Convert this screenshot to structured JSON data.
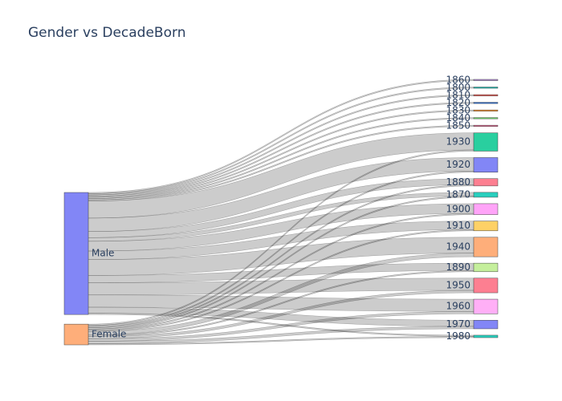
{
  "chart_data": {
    "type": "sankey",
    "title": "Gender vs DecadeBorn",
    "sources": [
      {
        "label": "Male",
        "color": "#8286f6"
      },
      {
        "label": "Female",
        "color": "#feae7a"
      }
    ],
    "targets": [
      {
        "label": "1860",
        "color": "#b088d8"
      },
      {
        "label": "1800",
        "color": "#17bcb3"
      },
      {
        "label": "1810",
        "color": "#e8483f"
      },
      {
        "label": "1820",
        "color": "#2a70d8"
      },
      {
        "label": "1830",
        "color": "#ff8a1e"
      },
      {
        "label": "1840",
        "color": "#6cd66a"
      },
      {
        "label": "1850",
        "color": "#e05e8a"
      },
      {
        "label": "1930",
        "color": "#29cf9f"
      },
      {
        "label": "1920",
        "color": "#8286f6"
      },
      {
        "label": "1880",
        "color": "#fd7f91"
      },
      {
        "label": "1870",
        "color": "#29cfbe"
      },
      {
        "label": "1900",
        "color": "#ffa4f8"
      },
      {
        "label": "1910",
        "color": "#fed166"
      },
      {
        "label": "1940",
        "color": "#feae7a"
      },
      {
        "label": "1890",
        "color": "#c5ef9c"
      },
      {
        "label": "1950",
        "color": "#fd7f91"
      },
      {
        "label": "1960",
        "color": "#ffaff6"
      },
      {
        "label": "1970",
        "color": "#8286f6"
      },
      {
        "label": "1980",
        "color": "#29cfbe"
      }
    ],
    "links": [
      {
        "source": "Male",
        "target": "1860",
        "value": 1
      },
      {
        "source": "Male",
        "target": "1800",
        "value": 1
      },
      {
        "source": "Male",
        "target": "1810",
        "value": 1
      },
      {
        "source": "Male",
        "target": "1820",
        "value": 1
      },
      {
        "source": "Male",
        "target": "1830",
        "value": 1
      },
      {
        "source": "Male",
        "target": "1840",
        "value": 1
      },
      {
        "source": "Male",
        "target": "1850",
        "value": 1
      },
      {
        "source": "Male",
        "target": "1930",
        "value": 14
      },
      {
        "source": "Male",
        "target": "1920",
        "value": 11
      },
      {
        "source": "Male",
        "target": "1880",
        "value": 5
      },
      {
        "source": "Male",
        "target": "1870",
        "value": 3
      },
      {
        "source": "Male",
        "target": "1900",
        "value": 8
      },
      {
        "source": "Male",
        "target": "1910",
        "value": 7
      },
      {
        "source": "Male",
        "target": "1940",
        "value": 13
      },
      {
        "source": "Male",
        "target": "1890",
        "value": 6
      },
      {
        "source": "Male",
        "target": "1950",
        "value": 10
      },
      {
        "source": "Male",
        "target": "1960",
        "value": 10
      },
      {
        "source": "Male",
        "target": "1970",
        "value": 5
      },
      {
        "source": "Male",
        "target": "1980",
        "value": 1
      },
      {
        "source": "Female",
        "target": "1930",
        "value": 1
      },
      {
        "source": "Female",
        "target": "1920",
        "value": 1
      },
      {
        "source": "Female",
        "target": "1880",
        "value": 1
      },
      {
        "source": "Female",
        "target": "1870",
        "value": 1
      },
      {
        "source": "Female",
        "target": "1900",
        "value": 1
      },
      {
        "source": "Female",
        "target": "1910",
        "value": 1
      },
      {
        "source": "Female",
        "target": "1940",
        "value": 3
      },
      {
        "source": "Female",
        "target": "1890",
        "value": 1
      },
      {
        "source": "Female",
        "target": "1950",
        "value": 2
      },
      {
        "source": "Female",
        "target": "1960",
        "value": 2
      },
      {
        "source": "Female",
        "target": "1970",
        "value": 2
      },
      {
        "source": "Female",
        "target": "1980",
        "value": 1
      }
    ]
  }
}
